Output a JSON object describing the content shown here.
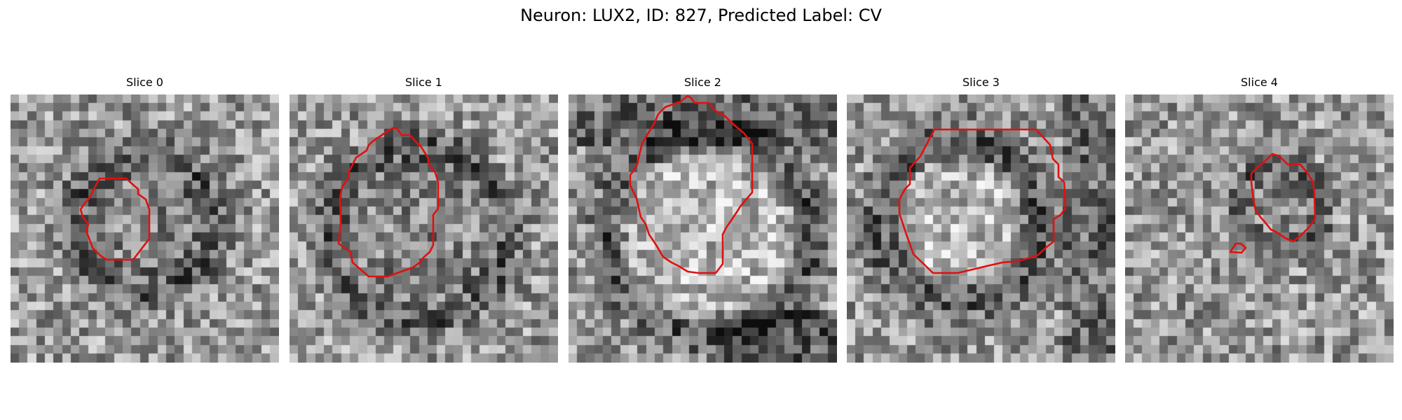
{
  "figure": {
    "title": "Neuron: LUX2, ID: 827, Predicted Label: CV",
    "contour_color": "#e01010",
    "colormap": "gray",
    "grid_size": 31
  },
  "panels": [
    {
      "title": "Slice 0"
    },
    {
      "title": "Slice 1"
    },
    {
      "title": "Slice 2"
    },
    {
      "title": "Slice 3"
    },
    {
      "title": "Slice 4"
    }
  ]
}
